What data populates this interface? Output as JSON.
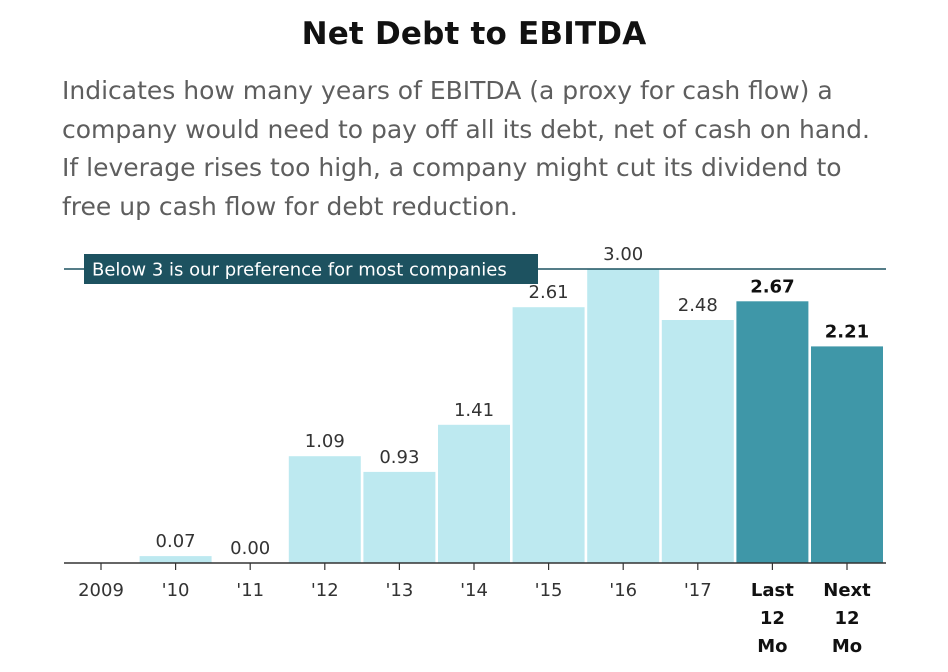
{
  "title": "Net Debt to EBITDA",
  "subtitle": "Indicates how many years of EBITDA (a proxy for cash flow) a company would need to pay off all its debt, net of cash on hand. If leverage rises too high, a company might cut its dividend to free up cash flow for debt reduction.",
  "chart_data": {
    "type": "bar",
    "categories": [
      "2009",
      "'10",
      "'11",
      "'12",
      "'13",
      "'14",
      "'15",
      "'16",
      "'17",
      "Last 12 Mo",
      "Next 12 Mo"
    ],
    "values": [
      null,
      0.07,
      0.0,
      1.09,
      0.93,
      1.41,
      2.61,
      3.0,
      2.48,
      2.67,
      2.21
    ],
    "value_labels": [
      "",
      "0.07",
      "0.00",
      "1.09",
      "0.93",
      "1.41",
      "2.61",
      "3.00",
      "2.48",
      "2.67",
      "2.21"
    ],
    "highlighted": [
      false,
      false,
      false,
      false,
      false,
      false,
      false,
      false,
      false,
      true,
      true
    ],
    "colors": {
      "bar": "#bde9f0",
      "bar_highlight": "#3f97a8",
      "reference": "#1d5260"
    },
    "reference_line": {
      "value": 3,
      "label": "Below 3 is our preference for most companies"
    },
    "ylim": [
      0,
      3
    ],
    "grid": false,
    "legend": "none"
  }
}
